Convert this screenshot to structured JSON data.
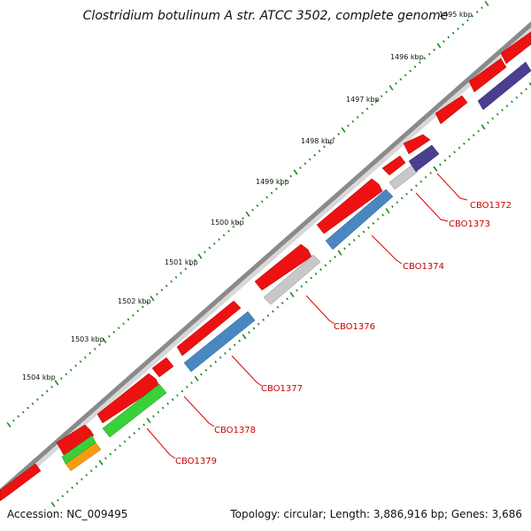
{
  "title": "Clostridium botulinum A str. ATCC 3502, complete genome",
  "accession": "Accession: NC_009495",
  "summary": "Topology: circular; Length: 3,886,916 bp; Genes: 3,686",
  "kbp_labels": [
    "1495 kbp",
    "1496 kbp",
    "1497 kbp",
    "1498 kbp",
    "1499 kbp",
    "1500 kbp",
    "1501 kbp",
    "1502 kbp",
    "1503 kbp",
    "1504 kbp"
  ],
  "gene_labels": [
    "CBO1372",
    "CBO1373",
    "CBO1374",
    "CBO1376",
    "CBO1377",
    "CBO1378",
    "CBO1379"
  ],
  "colors": {
    "backbone": "#8a8a8a",
    "forward_cds": "#ee1111",
    "purple": "#4a3f8f",
    "grey": "#c0c0c0",
    "blue": "#4a86c0",
    "green": "#3ad03a",
    "orange": "#f39c12",
    "tick_green": "#1a8a1a",
    "label_red": "#cc0000"
  }
}
